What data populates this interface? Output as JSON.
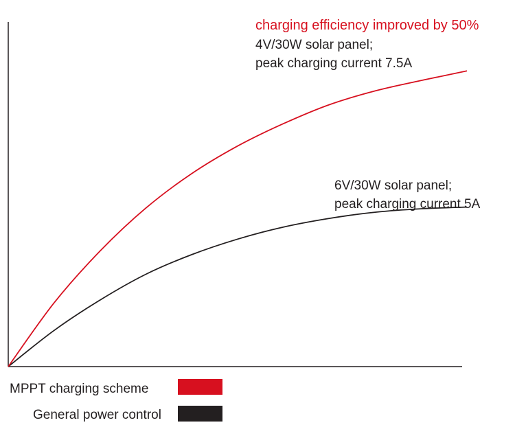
{
  "chart_data": {
    "type": "line",
    "title": "",
    "xlabel": "",
    "ylabel": "",
    "series": [
      {
        "name": "MPPT charging scheme",
        "color": "#d7101f",
        "points": [
          [
            0,
            0
          ],
          [
            10,
            18.5
          ],
          [
            20,
            33.5
          ],
          [
            30,
            46.0
          ],
          [
            40,
            56.0
          ],
          [
            50,
            64.0
          ],
          [
            60,
            70.5
          ],
          [
            70,
            76.0
          ],
          [
            80,
            80.0
          ],
          [
            90,
            83.0
          ],
          [
            100,
            85.8
          ]
        ]
      },
      {
        "name": "General power control",
        "color": "#231f20",
        "points": [
          [
            0,
            0
          ],
          [
            10,
            10.5
          ],
          [
            20,
            19.3
          ],
          [
            30,
            26.8
          ],
          [
            40,
            32.5
          ],
          [
            50,
            37.0
          ],
          [
            60,
            40.5
          ],
          [
            70,
            43.0
          ],
          [
            80,
            44.8
          ],
          [
            90,
            45.8
          ],
          [
            100,
            46.3
          ]
        ]
      }
    ],
    "annotations": {
      "improvement": "charging efficiency improved by 50%",
      "mppt_line1": "4V/30W solar panel;",
      "mppt_line2": "peak charging current 7.5A",
      "general_line1": "6V/30W solar panel;",
      "general_line2": "peak charging current 5A"
    },
    "legend": {
      "position": "bottom-left",
      "items": [
        {
          "label": "MPPT charging scheme",
          "color": "#d7101f"
        },
        {
          "label": "General power control",
          "color": "#231f20"
        }
      ]
    },
    "xlim": [
      0,
      100
    ],
    "ylim": [
      0,
      100
    ],
    "grid": false
  }
}
